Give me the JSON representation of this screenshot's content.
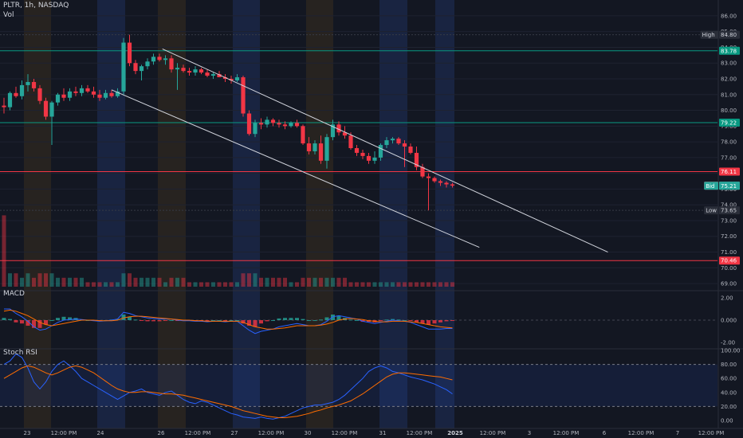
{
  "header": {
    "symbol_line": "PLTR, 1h, NASDAQ",
    "vol_label": "Vol"
  },
  "panes": {
    "macd_label": "MACD",
    "stoch_label": "Stoch RSI"
  },
  "colors": {
    "background": "#131722",
    "up": "#26a69a",
    "down": "#f23645",
    "grid": "#1e2230",
    "axis_text": "#b2b5be",
    "level_green": "#089981",
    "level_red": "#f23645",
    "session_blue": "#1b2746",
    "session_orange": "#2b2620",
    "macd_line": "#2962ff",
    "signal_line": "#ff6d00",
    "stoch_k": "#2962ff",
    "stoch_d": "#ff6d00"
  },
  "chart_data": {
    "type": "candlestick",
    "symbol": "PLTR",
    "interval": "1h",
    "exchange": "NASDAQ",
    "price_ticks": [
      "86.00",
      "85.00",
      "84.00",
      "83.00",
      "82.00",
      "81.00",
      "80.00",
      "79.00",
      "78.00",
      "77.00",
      "76.00",
      "75.00",
      "74.00",
      "73.00",
      "72.00",
      "71.00",
      "70.00",
      "69.00"
    ],
    "ylim": [
      68.7,
      86.4
    ],
    "x_labels": [
      "23",
      "12:00 PM",
      "24",
      "26",
      "12:00 PM",
      "27",
      "12:00 PM",
      "30",
      "12:00 PM",
      "31",
      "12:00 PM",
      "2025",
      "12:00 PM",
      "3",
      "12:00 PM",
      "6",
      "12:00 PM",
      "7",
      "12:00 PM"
    ],
    "levels": [
      {
        "value": 84.8,
        "label": "High",
        "price_text": "84.80",
        "style": "high"
      },
      {
        "value": 83.78,
        "label": "",
        "price_text": "83.78",
        "style": "green"
      },
      {
        "value": 79.22,
        "label": "",
        "price_text": "79.22",
        "style": "green"
      },
      {
        "value": 76.11,
        "label": "",
        "price_text": "76.11",
        "style": "red"
      },
      {
        "value": 75.22,
        "label": "Ask",
        "price_text": "75.22",
        "style": "ask"
      },
      {
        "value": 75.22,
        "label": "",
        "price_text": "75.22",
        "style": "last"
      },
      {
        "value": 75.21,
        "label": "Bid",
        "price_text": "75.21",
        "style": "bid"
      },
      {
        "value": 73.65,
        "label": "Low",
        "price_text": "73.65",
        "style": "low"
      },
      {
        "value": 70.46,
        "label": "",
        "price_text": "70.46",
        "style": "red"
      }
    ],
    "candles": [
      [
        80.3,
        80.8,
        79.8,
        80.2
      ],
      [
        80.2,
        81.2,
        80.0,
        81.1
      ],
      [
        81.1,
        81.5,
        80.8,
        80.9
      ],
      [
        80.9,
        81.9,
        80.7,
        81.6
      ],
      [
        81.6,
        82.3,
        81.2,
        81.8
      ],
      [
        81.8,
        82.0,
        81.2,
        81.4
      ],
      [
        81.4,
        81.6,
        80.4,
        80.6
      ],
      [
        80.6,
        80.8,
        79.4,
        79.6
      ],
      [
        79.6,
        80.6,
        77.8,
        80.5
      ],
      [
        80.5,
        81.1,
        80.3,
        81.0
      ],
      [
        81.0,
        81.4,
        80.6,
        80.8
      ],
      [
        80.8,
        81.4,
        80.6,
        81.2
      ],
      [
        81.2,
        81.5,
        80.9,
        81.1
      ],
      [
        81.1,
        81.6,
        80.9,
        81.4
      ],
      [
        81.4,
        81.6,
        81.1,
        81.2
      ],
      [
        81.2,
        81.5,
        80.8,
        81.0
      ],
      [
        81.0,
        81.3,
        80.6,
        80.8
      ],
      [
        80.8,
        81.3,
        80.7,
        81.1
      ],
      [
        81.1,
        81.3,
        80.8,
        80.9
      ],
      [
        80.9,
        81.4,
        80.8,
        81.2
      ],
      [
        81.2,
        84.6,
        81.0,
        84.3
      ],
      [
        84.3,
        84.8,
        82.8,
        83.0
      ],
      [
        83.0,
        83.2,
        82.3,
        82.5
      ],
      [
        82.5,
        82.9,
        81.9,
        82.8
      ],
      [
        82.8,
        83.3,
        82.6,
        83.1
      ],
      [
        83.1,
        83.6,
        82.9,
        83.4
      ],
      [
        83.4,
        83.6,
        83.1,
        83.2
      ],
      [
        83.2,
        83.5,
        82.9,
        83.3
      ],
      [
        83.3,
        83.5,
        82.4,
        82.6
      ],
      [
        82.6,
        83.0,
        81.3,
        82.7
      ],
      [
        82.7,
        82.9,
        82.4,
        82.5
      ],
      [
        82.5,
        82.7,
        82.2,
        82.4
      ],
      [
        82.4,
        82.8,
        82.2,
        82.6
      ],
      [
        82.6,
        82.7,
        82.3,
        82.4
      ],
      [
        82.4,
        82.6,
        82.1,
        82.2
      ],
      [
        82.2,
        82.4,
        82.0,
        82.3
      ],
      [
        82.3,
        82.5,
        82.1,
        82.1
      ],
      [
        82.1,
        82.3,
        81.8,
        82.0
      ],
      [
        82.0,
        82.2,
        81.7,
        81.9
      ],
      [
        81.9,
        82.3,
        81.8,
        82.1
      ],
      [
        82.1,
        82.2,
        79.6,
        79.8
      ],
      [
        79.8,
        80.0,
        78.4,
        78.5
      ],
      [
        78.5,
        79.4,
        78.3,
        79.2
      ],
      [
        79.2,
        79.5,
        78.8,
        79.1
      ],
      [
        79.1,
        79.6,
        78.9,
        79.4
      ],
      [
        79.4,
        79.5,
        79.0,
        79.2
      ],
      [
        79.2,
        79.4,
        78.9,
        79.1
      ],
      [
        79.1,
        79.3,
        78.8,
        79.0
      ],
      [
        79.0,
        79.3,
        78.9,
        79.2
      ],
      [
        79.2,
        79.4,
        78.9,
        79.0
      ],
      [
        79.0,
        79.1,
        77.8,
        77.9
      ],
      [
        77.9,
        78.3,
        77.2,
        77.4
      ],
      [
        77.4,
        78.1,
        77.2,
        77.9
      ],
      [
        77.9,
        78.4,
        76.6,
        76.8
      ],
      [
        76.8,
        78.5,
        76.3,
        78.3
      ],
      [
        78.3,
        79.4,
        78.1,
        79.1
      ],
      [
        79.1,
        79.3,
        78.4,
        78.6
      ],
      [
        78.6,
        79.0,
        78.2,
        78.4
      ],
      [
        78.4,
        78.6,
        77.5,
        77.6
      ],
      [
        77.6,
        77.8,
        77.1,
        77.3
      ],
      [
        77.3,
        77.5,
        76.9,
        77.1
      ],
      [
        77.1,
        77.3,
        76.6,
        76.8
      ],
      [
        76.8,
        77.4,
        76.6,
        77.0
      ],
      [
        77.0,
        77.9,
        76.8,
        77.8
      ],
      [
        77.8,
        78.3,
        77.6,
        78.1
      ],
      [
        78.1,
        78.3,
        77.9,
        78.2
      ],
      [
        78.2,
        78.3,
        77.8,
        77.9
      ],
      [
        77.9,
        78.1,
        76.4,
        77.7
      ],
      [
        77.7,
        77.9,
        77.2,
        77.3
      ],
      [
        77.3,
        77.7,
        76.2,
        76.4
      ],
      [
        76.4,
        76.6,
        75.7,
        75.8
      ],
      [
        75.8,
        76.0,
        73.65,
        75.7
      ],
      [
        75.7,
        75.8,
        75.4,
        75.5
      ],
      [
        75.5,
        75.6,
        75.2,
        75.4
      ],
      [
        75.4,
        75.5,
        75.1,
        75.3
      ],
      [
        75.3,
        75.4,
        75.1,
        75.22
      ]
    ],
    "volume": [
      2,
      3,
      3,
      2,
      3,
      2,
      3,
      3,
      3,
      2,
      2,
      2,
      2,
      2,
      1,
      1,
      1,
      1,
      1,
      1,
      3,
      3,
      2,
      2,
      2,
      2,
      2,
      1,
      2,
      2,
      2,
      1,
      1,
      1,
      1,
      1,
      1,
      1,
      1,
      1,
      3,
      3,
      3,
      2,
      2,
      2,
      2,
      2,
      1,
      1,
      2,
      2,
      2,
      2,
      2,
      2,
      2,
      2,
      1,
      1,
      1,
      1,
      1,
      1,
      1,
      1,
      1,
      1,
      1,
      1,
      1,
      1,
      1,
      1,
      1,
      1
    ],
    "volume_spike": {
      "bar": 0,
      "value": 16
    },
    "trendlines": [
      {
        "from": [
          26.5,
          83.9
        ],
        "to": [
          101,
          71.0
        ]
      },
      {
        "from": [
          18.0,
          81.3
        ],
        "to": [
          79.5,
          71.3
        ]
      }
    ],
    "macd": {
      "yticks": [
        "2.00",
        "0.000",
        "-2.00"
      ],
      "ylim": [
        -2.5,
        2.5
      ],
      "macd": [
        1.0,
        1.0,
        0.6,
        0.3,
        -0.1,
        -0.6,
        -0.9,
        -0.8,
        -0.5,
        -0.2,
        0.0,
        0.05,
        0.1,
        0.05,
        0.0,
        -0.05,
        -0.1,
        -0.05,
        0.0,
        0.1,
        0.7,
        0.6,
        0.4,
        0.3,
        0.2,
        0.15,
        0.1,
        0.1,
        0.1,
        0.0,
        -0.05,
        -0.05,
        -0.1,
        -0.1,
        -0.15,
        -0.1,
        -0.1,
        -0.15,
        -0.1,
        -0.1,
        -0.5,
        -0.9,
        -1.2,
        -1.0,
        -0.9,
        -0.8,
        -0.6,
        -0.5,
        -0.4,
        -0.3,
        -0.4,
        -0.5,
        -0.5,
        -0.4,
        -0.1,
        0.3,
        0.4,
        0.3,
        0.2,
        0.1,
        -0.1,
        -0.2,
        -0.3,
        -0.2,
        -0.1,
        0.0,
        -0.05,
        -0.1,
        -0.2,
        -0.4,
        -0.6,
        -0.8,
        -0.8,
        -0.8,
        -0.75,
        -0.75
      ],
      "signal": [
        0.8,
        0.9,
        0.8,
        0.6,
        0.4,
        0.1,
        -0.2,
        -0.4,
        -0.5,
        -0.4,
        -0.3,
        -0.2,
        -0.1,
        0.0,
        0.0,
        0.0,
        -0.05,
        -0.05,
        -0.05,
        0.0,
        0.2,
        0.3,
        0.35,
        0.35,
        0.3,
        0.25,
        0.2,
        0.15,
        0.1,
        0.05,
        0.0,
        0.0,
        -0.05,
        -0.05,
        -0.1,
        -0.1,
        -0.1,
        -0.1,
        -0.1,
        -0.1,
        -0.2,
        -0.4,
        -0.6,
        -0.7,
        -0.8,
        -0.8,
        -0.75,
        -0.7,
        -0.6,
        -0.5,
        -0.5,
        -0.5,
        -0.5,
        -0.45,
        -0.35,
        -0.2,
        0.0,
        0.1,
        0.15,
        0.1,
        0.05,
        -0.05,
        -0.1,
        -0.15,
        -0.15,
        -0.1,
        -0.1,
        -0.1,
        -0.15,
        -0.2,
        -0.3,
        -0.4,
        -0.5,
        -0.6,
        -0.65,
        -0.7
      ]
    },
    "stoch_rsi": {
      "yticks": [
        "100.00",
        "80.00",
        "60.00",
        "40.00",
        "20.00",
        "0.00"
      ],
      "ylim": [
        0,
        100
      ],
      "band": [
        20,
        80
      ],
      "k": [
        80,
        85,
        95,
        90,
        75,
        55,
        45,
        55,
        70,
        80,
        85,
        78,
        70,
        60,
        55,
        50,
        45,
        40,
        35,
        30,
        35,
        40,
        42,
        45,
        40,
        38,
        36,
        40,
        42,
        36,
        30,
        26,
        24,
        28,
        26,
        22,
        18,
        14,
        10,
        8,
        5,
        4,
        3,
        5,
        3,
        2,
        4,
        6,
        10,
        14,
        18,
        20,
        22,
        22,
        24,
        26,
        30,
        36,
        44,
        52,
        60,
        70,
        75,
        78,
        75,
        70,
        68,
        65,
        62,
        60,
        58,
        55,
        52,
        48,
        44,
        38
      ],
      "d": [
        60,
        65,
        70,
        75,
        78,
        76,
        72,
        68,
        65,
        68,
        72,
        76,
        78,
        76,
        72,
        68,
        62,
        56,
        50,
        45,
        42,
        40,
        40,
        41,
        41,
        40,
        39,
        38,
        38,
        37,
        36,
        34,
        32,
        30,
        28,
        26,
        24,
        22,
        20,
        17,
        14,
        12,
        10,
        8,
        6,
        5,
        4,
        4,
        5,
        6,
        8,
        10,
        13,
        15,
        18,
        20,
        22,
        25,
        28,
        33,
        38,
        44,
        50,
        56,
        62,
        66,
        68,
        68,
        67,
        66,
        65,
        64,
        63,
        62,
        60,
        58
      ]
    }
  }
}
